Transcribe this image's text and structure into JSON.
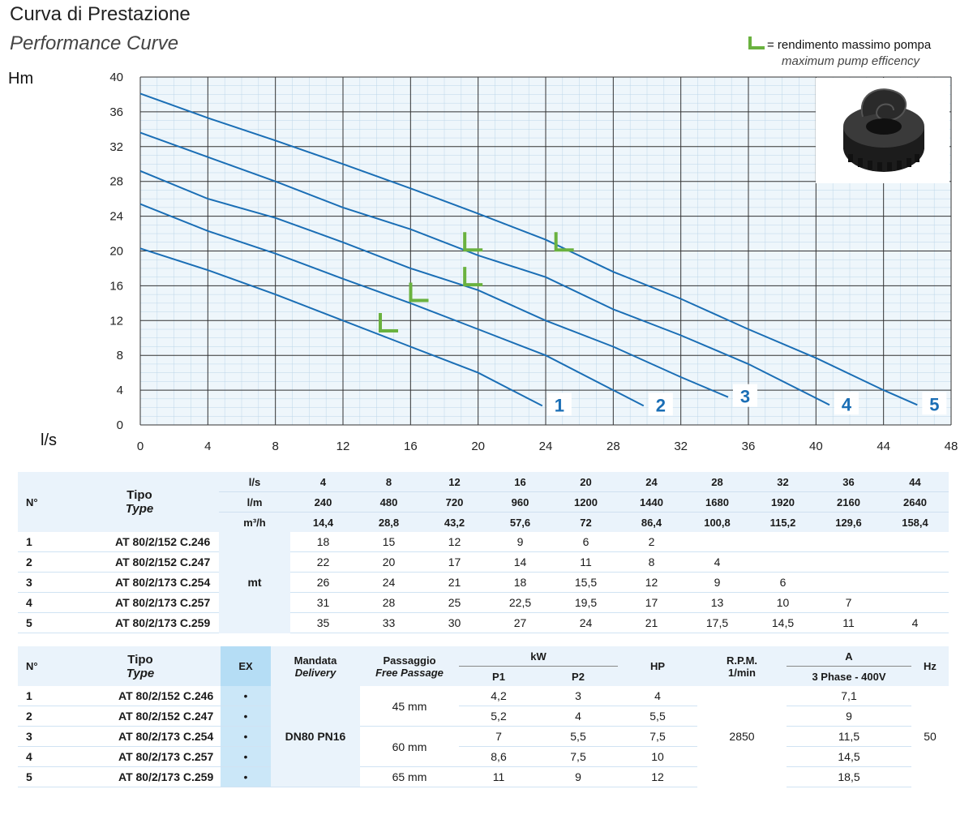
{
  "header": {
    "title": "Curva di Prestazione",
    "subtitle": "Performance Curve",
    "legend_line1": "= rendimento massimo pompa",
    "legend_line2": "maximum pump efficency",
    "legend_mark_color": "#6ab23f"
  },
  "chart_data": {
    "type": "line",
    "ylabel": "Hm",
    "xlabel": "l/s",
    "xlim": [
      0,
      48
    ],
    "ylim": [
      0,
      40
    ],
    "x_ticks": [
      0,
      4,
      8,
      12,
      16,
      20,
      24,
      28,
      32,
      36,
      40,
      44,
      48
    ],
    "y_ticks": [
      0,
      4,
      8,
      12,
      16,
      20,
      24,
      28,
      32,
      36,
      40
    ],
    "grid": true,
    "line_color": "#1a6eb5",
    "label_color": "#1a6eb5",
    "series": [
      {
        "name": "1",
        "x": [
          0,
          4,
          8,
          12,
          16,
          20,
          22,
          23.8
        ],
        "y": [
          20.3,
          17.8,
          15,
          12,
          9,
          6,
          4,
          2.2
        ]
      },
      {
        "name": "2",
        "x": [
          0,
          4,
          8,
          12,
          16,
          20,
          24,
          28,
          29.8
        ],
        "y": [
          25.4,
          22.3,
          19.7,
          16.8,
          14,
          11,
          8,
          4,
          2.2
        ]
      },
      {
        "name": "3",
        "x": [
          0,
          4,
          8,
          12,
          16,
          20,
          24,
          28,
          32,
          34.8
        ],
        "y": [
          29.2,
          26,
          23.8,
          21,
          18,
          15.5,
          12,
          9,
          5.5,
          3.2
        ]
      },
      {
        "name": "4",
        "x": [
          0,
          4,
          8,
          12,
          16,
          20,
          24,
          28,
          32,
          36,
          40.8
        ],
        "y": [
          33.6,
          30.8,
          28,
          25,
          22.5,
          19.5,
          17,
          13.3,
          10.3,
          7,
          2.3
        ]
      },
      {
        "name": "5",
        "x": [
          0,
          4,
          8,
          12,
          16,
          20,
          24,
          28,
          32,
          36,
          40,
          44,
          46
        ],
        "y": [
          38.1,
          35.3,
          32.7,
          30,
          27.2,
          24.3,
          21.3,
          17.6,
          14.5,
          11,
          7.7,
          4,
          2.3
        ]
      }
    ],
    "efficiency_points": [
      {
        "x": 14.4,
        "y": 11
      },
      {
        "x": 16.2,
        "y": 14.5
      },
      {
        "x": 19.4,
        "y": 16.3
      },
      {
        "x": 19.4,
        "y": 20.3
      },
      {
        "x": 24.8,
        "y": 20.3
      }
    ]
  },
  "perf_table": {
    "n_header": "N°",
    "tipo_header": "Tipo",
    "type_header": "Type",
    "unit_rows": [
      {
        "unit": "l/s",
        "values": [
          "4",
          "8",
          "12",
          "16",
          "20",
          "24",
          "28",
          "32",
          "36",
          "44"
        ]
      },
      {
        "unit": "l/m",
        "values": [
          "240",
          "480",
          "720",
          "960",
          "1200",
          "1440",
          "1680",
          "1920",
          "2160",
          "2640"
        ]
      },
      {
        "unit": "m³/h",
        "values": [
          "14,4",
          "28,8",
          "43,2",
          "57,6",
          "72",
          "86,4",
          "100,8",
          "115,2",
          "129,6",
          "158,4"
        ]
      }
    ],
    "unit_label": "mt",
    "rows": [
      {
        "n": "1",
        "type": "AT 80/2/152 C.246",
        "values": [
          "18",
          "15",
          "12",
          "9",
          "6",
          "2",
          "",
          "",
          "",
          ""
        ]
      },
      {
        "n": "2",
        "type": "AT 80/2/152 C.247",
        "values": [
          "22",
          "20",
          "17",
          "14",
          "11",
          "8",
          "4",
          "",
          "",
          ""
        ]
      },
      {
        "n": "3",
        "type": "AT 80/2/173 C.254",
        "values": [
          "26",
          "24",
          "21",
          "18",
          "15,5",
          "12",
          "9",
          "6",
          "",
          ""
        ]
      },
      {
        "n": "4",
        "type": "AT 80/2/173 C.257",
        "values": [
          "31",
          "28",
          "25",
          "22,5",
          "19,5",
          "17",
          "13",
          "10",
          "7",
          ""
        ]
      },
      {
        "n": "5",
        "type": "AT 80/2/173 C.259",
        "values": [
          "35",
          "33",
          "30",
          "27",
          "24",
          "21",
          "17,5",
          "14,5",
          "11",
          "4"
        ]
      }
    ]
  },
  "spec_table": {
    "n_header": "N°",
    "tipo_header": "Tipo",
    "type_header": "Type",
    "ex_header": "EX",
    "mandata_header": "Mandata",
    "delivery_header": "Delivery",
    "passaggio_header": "Passaggio",
    "free_passage_header": "Free Passage",
    "kw_header": "kW",
    "p1_header": "P1",
    "p2_header": "P2",
    "hp_header": "HP",
    "rpm_header": "R.P.M.",
    "rpm_unit_header": "1/min",
    "a_header": "A",
    "phase_header": "3 Phase - 400V",
    "hz_header": "Hz",
    "delivery_value": "DN80 PN16",
    "rpm_value": "2850",
    "hz_value": "50",
    "passage_groups": [
      "45 mm",
      "60 mm",
      "65 mm"
    ],
    "rows": [
      {
        "n": "1",
        "type": "AT 80/2/152 C.246",
        "ex": "•",
        "p1": "4,2",
        "p2": "3",
        "hp": "4",
        "a": "7,1"
      },
      {
        "n": "2",
        "type": "AT 80/2/152 C.247",
        "ex": "•",
        "p1": "5,2",
        "p2": "4",
        "hp": "5,5",
        "a": "9"
      },
      {
        "n": "3",
        "type": "AT 80/2/173 C.254",
        "ex": "•",
        "p1": "7",
        "p2": "5,5",
        "hp": "7,5",
        "a": "11,5"
      },
      {
        "n": "4",
        "type": "AT 80/2/173 C.257",
        "ex": "•",
        "p1": "8,6",
        "p2": "7,5",
        "hp": "10",
        "a": "14,5"
      },
      {
        "n": "5",
        "type": "AT 80/2/173 C.259",
        "ex": "•",
        "p1": "11",
        "p2": "9",
        "hp": "12",
        "a": "18,5"
      }
    ]
  }
}
